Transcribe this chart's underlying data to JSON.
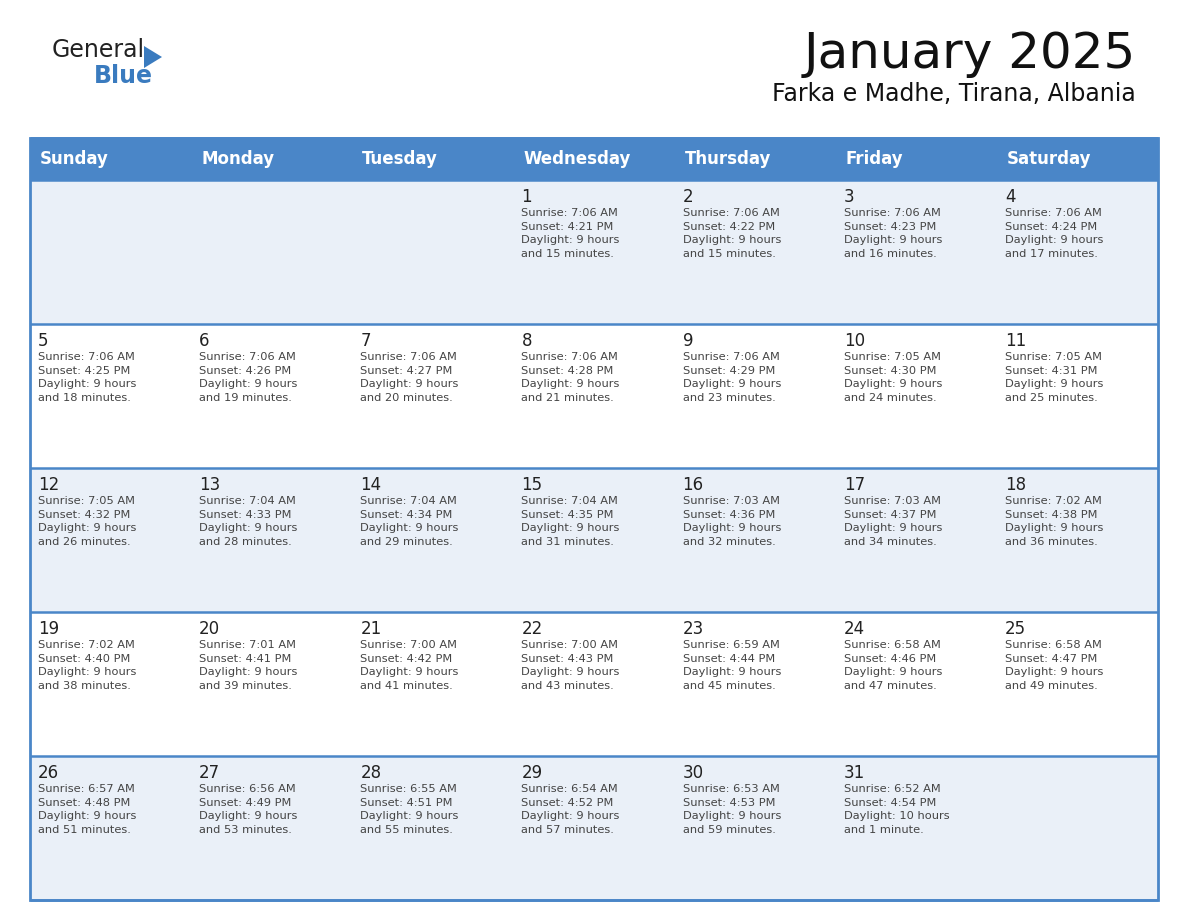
{
  "title": "January 2025",
  "subtitle": "Farka e Madhe, Tirana, Albania",
  "days_of_week": [
    "Sunday",
    "Monday",
    "Tuesday",
    "Wednesday",
    "Thursday",
    "Friday",
    "Saturday"
  ],
  "header_bg_color": "#4a86c8",
  "header_text_color": "#ffffff",
  "row_bg_even": "#eaf0f8",
  "row_bg_odd": "#ffffff",
  "border_color": "#4a86c8",
  "text_color": "#444444",
  "day_number_color": "#222222",
  "logo_general_color": "#222222",
  "logo_blue_color": "#3a7bbf",
  "calendar_data": [
    [
      {
        "day": "",
        "info": ""
      },
      {
        "day": "",
        "info": ""
      },
      {
        "day": "",
        "info": ""
      },
      {
        "day": "1",
        "info": "Sunrise: 7:06 AM\nSunset: 4:21 PM\nDaylight: 9 hours\nand 15 minutes."
      },
      {
        "day": "2",
        "info": "Sunrise: 7:06 AM\nSunset: 4:22 PM\nDaylight: 9 hours\nand 15 minutes."
      },
      {
        "day": "3",
        "info": "Sunrise: 7:06 AM\nSunset: 4:23 PM\nDaylight: 9 hours\nand 16 minutes."
      },
      {
        "day": "4",
        "info": "Sunrise: 7:06 AM\nSunset: 4:24 PM\nDaylight: 9 hours\nand 17 minutes."
      }
    ],
    [
      {
        "day": "5",
        "info": "Sunrise: 7:06 AM\nSunset: 4:25 PM\nDaylight: 9 hours\nand 18 minutes."
      },
      {
        "day": "6",
        "info": "Sunrise: 7:06 AM\nSunset: 4:26 PM\nDaylight: 9 hours\nand 19 minutes."
      },
      {
        "day": "7",
        "info": "Sunrise: 7:06 AM\nSunset: 4:27 PM\nDaylight: 9 hours\nand 20 minutes."
      },
      {
        "day": "8",
        "info": "Sunrise: 7:06 AM\nSunset: 4:28 PM\nDaylight: 9 hours\nand 21 minutes."
      },
      {
        "day": "9",
        "info": "Sunrise: 7:06 AM\nSunset: 4:29 PM\nDaylight: 9 hours\nand 23 minutes."
      },
      {
        "day": "10",
        "info": "Sunrise: 7:05 AM\nSunset: 4:30 PM\nDaylight: 9 hours\nand 24 minutes."
      },
      {
        "day": "11",
        "info": "Sunrise: 7:05 AM\nSunset: 4:31 PM\nDaylight: 9 hours\nand 25 minutes."
      }
    ],
    [
      {
        "day": "12",
        "info": "Sunrise: 7:05 AM\nSunset: 4:32 PM\nDaylight: 9 hours\nand 26 minutes."
      },
      {
        "day": "13",
        "info": "Sunrise: 7:04 AM\nSunset: 4:33 PM\nDaylight: 9 hours\nand 28 minutes."
      },
      {
        "day": "14",
        "info": "Sunrise: 7:04 AM\nSunset: 4:34 PM\nDaylight: 9 hours\nand 29 minutes."
      },
      {
        "day": "15",
        "info": "Sunrise: 7:04 AM\nSunset: 4:35 PM\nDaylight: 9 hours\nand 31 minutes."
      },
      {
        "day": "16",
        "info": "Sunrise: 7:03 AM\nSunset: 4:36 PM\nDaylight: 9 hours\nand 32 minutes."
      },
      {
        "day": "17",
        "info": "Sunrise: 7:03 AM\nSunset: 4:37 PM\nDaylight: 9 hours\nand 34 minutes."
      },
      {
        "day": "18",
        "info": "Sunrise: 7:02 AM\nSunset: 4:38 PM\nDaylight: 9 hours\nand 36 minutes."
      }
    ],
    [
      {
        "day": "19",
        "info": "Sunrise: 7:02 AM\nSunset: 4:40 PM\nDaylight: 9 hours\nand 38 minutes."
      },
      {
        "day": "20",
        "info": "Sunrise: 7:01 AM\nSunset: 4:41 PM\nDaylight: 9 hours\nand 39 minutes."
      },
      {
        "day": "21",
        "info": "Sunrise: 7:00 AM\nSunset: 4:42 PM\nDaylight: 9 hours\nand 41 minutes."
      },
      {
        "day": "22",
        "info": "Sunrise: 7:00 AM\nSunset: 4:43 PM\nDaylight: 9 hours\nand 43 minutes."
      },
      {
        "day": "23",
        "info": "Sunrise: 6:59 AM\nSunset: 4:44 PM\nDaylight: 9 hours\nand 45 minutes."
      },
      {
        "day": "24",
        "info": "Sunrise: 6:58 AM\nSunset: 4:46 PM\nDaylight: 9 hours\nand 47 minutes."
      },
      {
        "day": "25",
        "info": "Sunrise: 6:58 AM\nSunset: 4:47 PM\nDaylight: 9 hours\nand 49 minutes."
      }
    ],
    [
      {
        "day": "26",
        "info": "Sunrise: 6:57 AM\nSunset: 4:48 PM\nDaylight: 9 hours\nand 51 minutes."
      },
      {
        "day": "27",
        "info": "Sunrise: 6:56 AM\nSunset: 4:49 PM\nDaylight: 9 hours\nand 53 minutes."
      },
      {
        "day": "28",
        "info": "Sunrise: 6:55 AM\nSunset: 4:51 PM\nDaylight: 9 hours\nand 55 minutes."
      },
      {
        "day": "29",
        "info": "Sunrise: 6:54 AM\nSunset: 4:52 PM\nDaylight: 9 hours\nand 57 minutes."
      },
      {
        "day": "30",
        "info": "Sunrise: 6:53 AM\nSunset: 4:53 PM\nDaylight: 9 hours\nand 59 minutes."
      },
      {
        "day": "31",
        "info": "Sunrise: 6:52 AM\nSunset: 4:54 PM\nDaylight: 10 hours\nand 1 minute."
      },
      {
        "day": "",
        "info": ""
      }
    ]
  ]
}
